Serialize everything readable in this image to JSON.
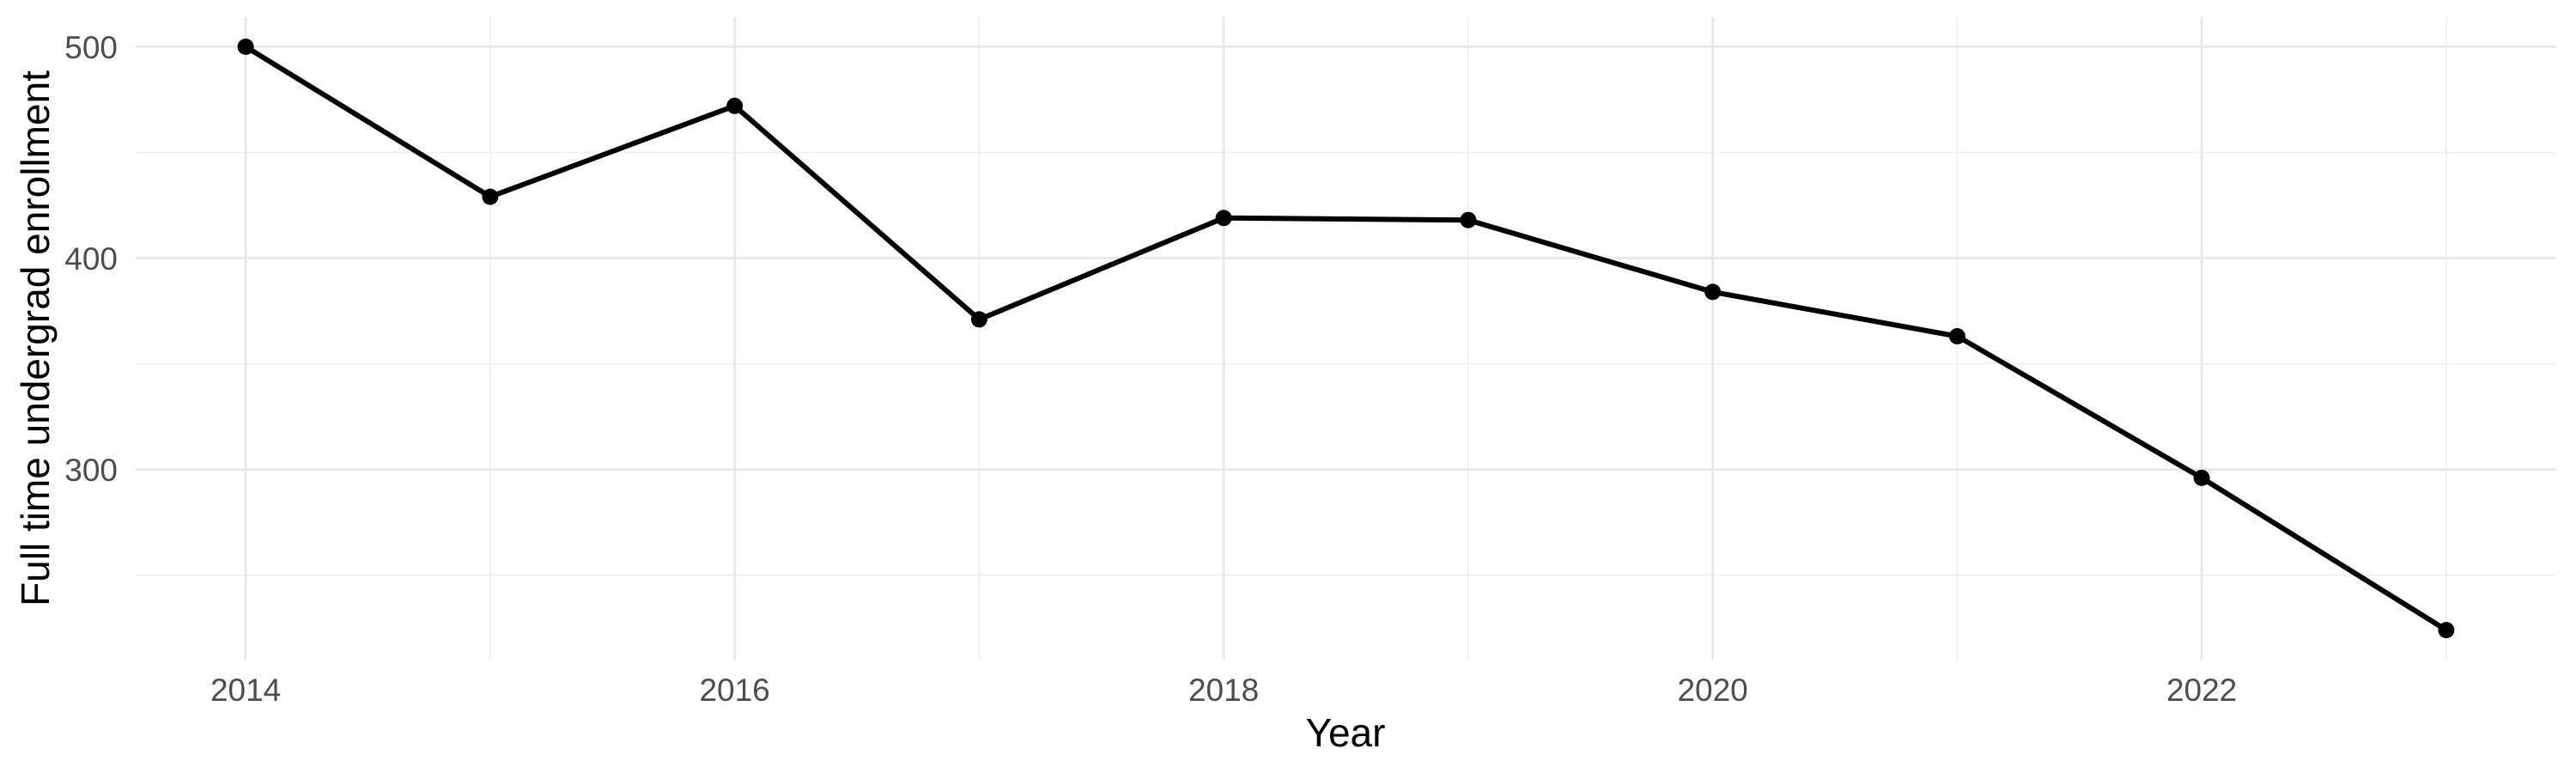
{
  "chart_data": {
    "type": "line",
    "title": "",
    "xlabel": "Year",
    "ylabel": "Full time undergrad enrollment",
    "x": [
      2014,
      2015,
      2016,
      2017,
      2018,
      2019,
      2020,
      2021,
      2022,
      2023
    ],
    "series": [
      {
        "name": "Full time undergrad enrollment",
        "values": [
          500,
          429,
          472,
          371,
          419,
          418,
          384,
          363,
          296,
          224
        ]
      }
    ],
    "xlim": [
      2013.55,
      2023.45
    ],
    "ylim": [
      210,
      514
    ],
    "x_ticks": {
      "values": [
        2014,
        2016,
        2018,
        2020,
        2022
      ],
      "labels": [
        "2014",
        "2016",
        "2018",
        "2020",
        "2022"
      ]
    },
    "x_minor_breaks": [
      2015,
      2017,
      2019,
      2021,
      2023
    ],
    "y_ticks": {
      "values": [
        300,
        400,
        500
      ],
      "labels": [
        "300",
        "400",
        "500"
      ]
    },
    "y_minor_breaks": [
      250,
      350,
      450
    ],
    "grid": true,
    "legend": "none",
    "marker": "point",
    "colors": {
      "line": "#000000",
      "point": "#000000",
      "grid_major": "#e8e8e8",
      "grid_minor": "#eeeeee",
      "tick_label": "#4d4d4d",
      "axis_title": "#000000",
      "background": "#ffffff"
    }
  }
}
